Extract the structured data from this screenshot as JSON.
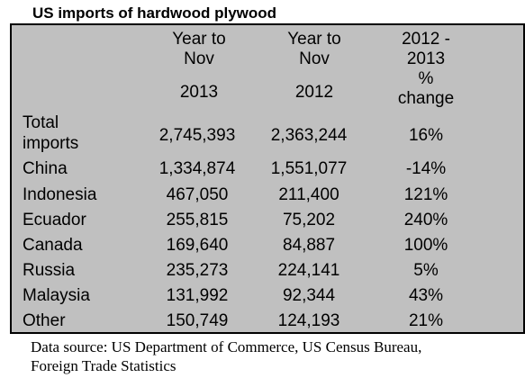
{
  "title": "US imports of hardwood plywood",
  "table": {
    "headers": [
      {
        "top_line": "Year to",
        "middle_line": "Nov",
        "bottom_line": "2013"
      },
      {
        "top_line": "Year to",
        "middle_line": "Nov",
        "bottom_line": "2012"
      },
      {
        "top_line": "2012 -",
        "middle_line": "2013",
        "line3": "%",
        "line4": "change"
      }
    ],
    "rows": [
      {
        "label_line1": "Total",
        "label_line2": "imports",
        "values": [
          "2,745,393",
          "2,363,244",
          "16%"
        ]
      },
      {
        "label": "China",
        "values": [
          "1,334,874",
          "1,551,077",
          "-14%"
        ]
      },
      {
        "label": "Indonesia",
        "values": [
          "467,050",
          "211,400",
          "121%"
        ]
      },
      {
        "label": "Ecuador",
        "values": [
          "255,815",
          "75,202",
          "240%"
        ]
      },
      {
        "label": "Canada",
        "values": [
          "169,640",
          "84,887",
          "100%"
        ]
      },
      {
        "label": "Russia",
        "values": [
          "235,273",
          "224,141",
          "5%"
        ]
      },
      {
        "label": "Malaysia",
        "values": [
          "131,992",
          "92,344",
          "43%"
        ]
      },
      {
        "label": "Other",
        "values": [
          "150,749",
          "124,193",
          "21%"
        ]
      }
    ]
  },
  "footer": {
    "line1": "Data source: US Department of Commerce, US Census Bureau,",
    "line2": "Foreign Trade Statistics"
  }
}
